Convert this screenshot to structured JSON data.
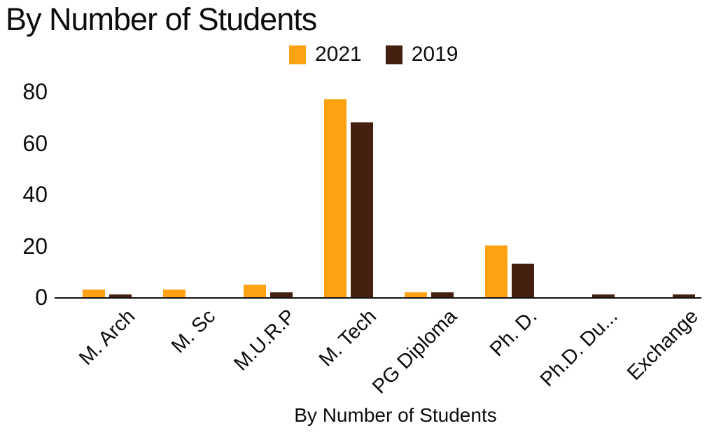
{
  "header": {
    "title": "By Number of Students"
  },
  "chart_data": {
    "type": "bar",
    "title": "By Number of Students",
    "categories": [
      "M. Arch",
      "M. Sc",
      "M.U.R.P",
      "M. Tech",
      "PG Diploma",
      "Ph. D.",
      "Ph.D. Du...",
      "Exchange"
    ],
    "series": [
      {
        "name": "2021",
        "color": "#FFA212",
        "values": [
          3,
          3,
          5,
          77,
          2,
          20,
          0,
          0
        ]
      },
      {
        "name": "2019",
        "color": "#45200F",
        "values": [
          1,
          0,
          2,
          68,
          2,
          13,
          1,
          1
        ]
      }
    ],
    "xlabel": "By Number of Students",
    "ylabel": "",
    "ylim": [
      0,
      80
    ],
    "yticks": [
      0,
      20,
      40,
      60,
      80
    ],
    "grid": false,
    "legend_position": "top-center",
    "background": "#ffffff",
    "axis_color": "#111111"
  }
}
